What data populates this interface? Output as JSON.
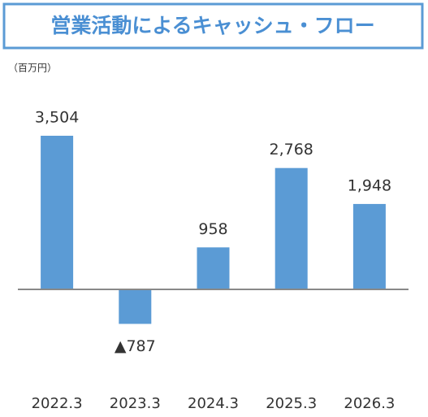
{
  "chart_data": {
    "type": "bar",
    "title": "営業活動によるキャッシュ・フロー",
    "ylabel": "（百万円）",
    "categories": [
      "2022.3",
      "2023.3",
      "2024.3",
      "2025.3",
      "2026.3"
    ],
    "values": [
      3504,
      -787,
      958,
      2768,
      1948
    ],
    "value_labels": [
      "3,504",
      "▲787",
      "958",
      "2,768",
      "1,948"
    ],
    "color": "#5b9bd5"
  }
}
